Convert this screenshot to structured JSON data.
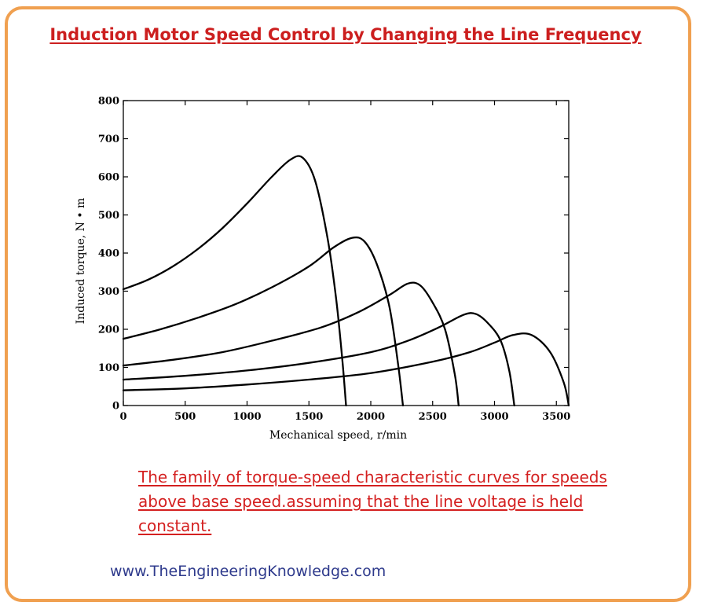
{
  "page": {
    "title": "Induction Motor Speed Control by Changing the Line Frequency",
    "caption": "The family of torque-speed characteristic curves for speeds above base speed.assuming that the line voltage is held constant.",
    "website": "www.TheEngineeringKnowledge.com",
    "colors": {
      "title": "#cc1f1f",
      "caption": "#d42020",
      "website": "#2e3a8c",
      "frame": "#f0a050",
      "curve": "#000000"
    }
  },
  "chart_data": {
    "type": "line",
    "title": "",
    "xlabel": "Mechanical speed, r/min",
    "ylabel": "Induced torque, N • m",
    "xlim": [
      0,
      3600
    ],
    "ylim": [
      0,
      800
    ],
    "xticks": [
      0,
      500,
      1000,
      1500,
      2000,
      2500,
      3000,
      3500
    ],
    "yticks": [
      0,
      100,
      200,
      300,
      400,
      500,
      600,
      700,
      800
    ],
    "grid": false,
    "legend": "none",
    "series": [
      {
        "x": [
          0,
          200,
          400,
          600,
          800,
          1000,
          1200,
          1350,
          1450,
          1550,
          1650,
          1720,
          1770,
          1800
        ],
        "y": [
          305,
          330,
          365,
          410,
          465,
          530,
          600,
          645,
          650,
          590,
          440,
          280,
          120,
          0
        ]
      },
      {
        "x": [
          0,
          300,
          600,
          900,
          1200,
          1500,
          1700,
          1850,
          1950,
          2050,
          2150,
          2220,
          2260
        ],
        "y": [
          175,
          200,
          230,
          265,
          310,
          365,
          415,
          440,
          430,
          370,
          260,
          110,
          0
        ]
      },
      {
        "x": [
          0,
          400,
          800,
          1200,
          1600,
          1900,
          2150,
          2300,
          2400,
          2500,
          2600,
          2680,
          2710
        ],
        "y": [
          105,
          120,
          140,
          170,
          205,
          245,
          290,
          320,
          315,
          270,
          200,
          80,
          0
        ]
      },
      {
        "x": [
          0,
          500,
          1000,
          1500,
          2000,
          2300,
          2550,
          2750,
          2850,
          2950,
          3050,
          3120,
          3160
        ],
        "y": [
          68,
          78,
          92,
          112,
          140,
          170,
          205,
          238,
          240,
          215,
          170,
          90,
          0
        ]
      },
      {
        "x": [
          0,
          500,
          1000,
          1500,
          2000,
          2500,
          2800,
          3000,
          3150,
          3300,
          3450,
          3560,
          3600
        ],
        "y": [
          40,
          45,
          55,
          68,
          85,
          115,
          140,
          165,
          185,
          185,
          140,
          60,
          0
        ]
      }
    ]
  }
}
